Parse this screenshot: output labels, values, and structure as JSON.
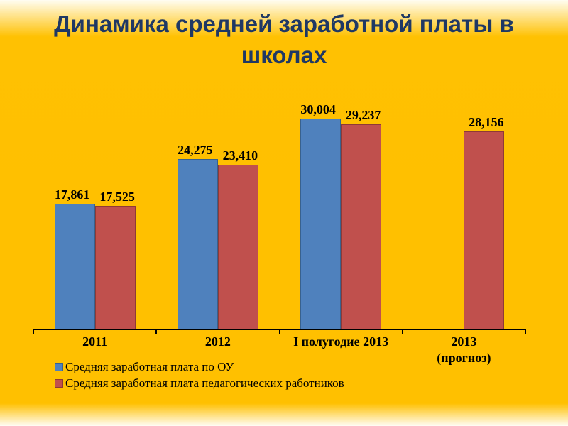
{
  "slide": {
    "title": "Динамика средней заработной платы в школах",
    "background_color": "#FFC000",
    "title_color": "#1F3864"
  },
  "chart_data": {
    "type": "bar",
    "title": "Динамика средней заработной платы в школах",
    "categories": [
      "2011",
      "2012",
      "I полугодие 2013",
      "2013\n(прогноз)"
    ],
    "series": [
      {
        "name": "Средняя заработная плата по ОУ",
        "color": "#4F81BD",
        "border_color": "#38618E",
        "values": [
          17861,
          24275,
          30004,
          null
        ],
        "labels": [
          "17,861",
          "24,275",
          "30,004",
          null
        ]
      },
      {
        "name": "Средняя заработная плата педагогических работников",
        "color": "#C0504D",
        "border_color": "#8E3A37",
        "values": [
          17525,
          23410,
          29237,
          28156
        ],
        "labels": [
          "17,525",
          "23,410",
          "29,237",
          "28,156"
        ]
      }
    ],
    "ylim": [
      0,
      35000
    ],
    "grid": false,
    "y_axis_visible": false,
    "legend_position": "bottom-left",
    "axis_color": "#000000",
    "data_label_format": "#,###"
  }
}
